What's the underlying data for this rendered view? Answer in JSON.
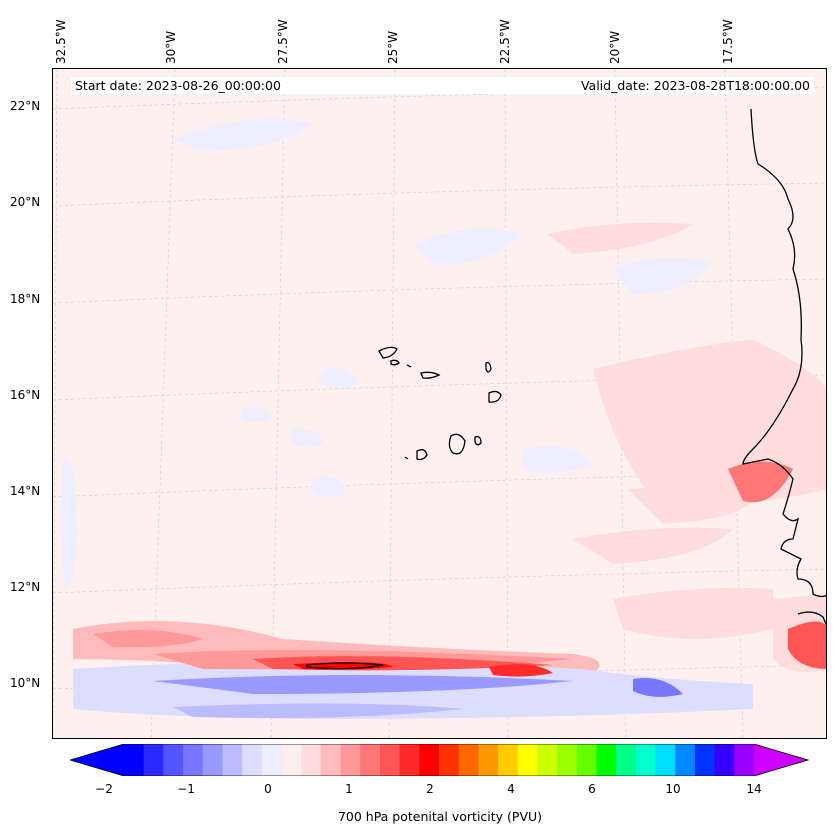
{
  "map": {
    "start_label": "Start date: 2023-08-26_00:00:00",
    "valid_label": "Valid_date: 2023-08-28T18:00:00.00",
    "lon_labels": [
      "32.5°W",
      "30°W",
      "27.5°W",
      "25°W",
      "22.5°W",
      "20°W",
      "17.5°W"
    ],
    "lat_labels": [
      "22°N",
      "20°N",
      "18°N",
      "16°N",
      "14°N",
      "12°N",
      "10°N"
    ],
    "background_color": "#fff0f0",
    "coast_color": "#000000"
  },
  "colorbar": {
    "title": "700 hPa potenital vorticity (PVU)",
    "tick_labels": [
      "−2",
      "−1",
      "0",
      "1",
      "2",
      "4",
      "6",
      "10",
      "14"
    ],
    "colors": [
      "#0000ff",
      "#2a2aff",
      "#5555ff",
      "#7777ff",
      "#9999ff",
      "#bbbbff",
      "#ddddff",
      "#eeeeff",
      "#ffeeee",
      "#ffdddd",
      "#ffbbbb",
      "#ff9999",
      "#ff7777",
      "#ff5555",
      "#ff2a2a",
      "#ff0000",
      "#ff3300",
      "#ff6600",
      "#ff9900",
      "#ffcc00",
      "#ffff00",
      "#ccff00",
      "#99ff00",
      "#66ff00",
      "#00ff00",
      "#00ff88",
      "#00ffcc",
      "#00ddff",
      "#0088ff",
      "#0033ff",
      "#3300ff",
      "#9900ff"
    ],
    "under_color": "#0000ff",
    "over_color": "#cc00ff"
  }
}
